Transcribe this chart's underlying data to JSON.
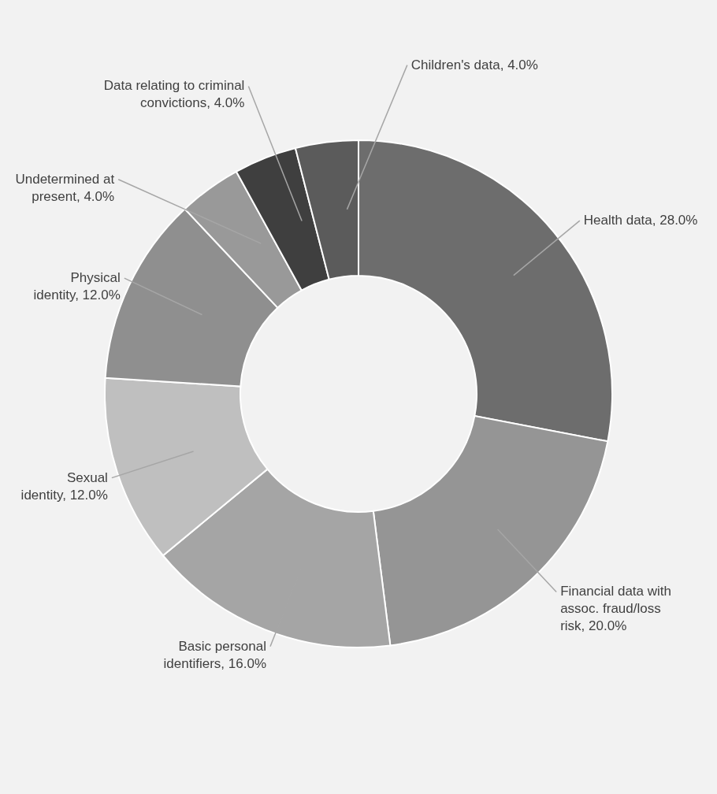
{
  "chart_data": {
    "type": "donut",
    "categories": [
      "Health data",
      "Financial data with assoc. fraud/loss risk",
      "Basic personal identifiers",
      "Sexual identity",
      "Physical identity",
      "Undetermined at present",
      "Data relating to criminal convictions",
      "Children's data"
    ],
    "values": [
      28,
      20,
      16,
      12,
      12,
      4,
      4,
      4
    ],
    "value_labels": [
      "28.0%",
      "20.0%",
      "16.0%",
      "12.0%",
      "12.0%",
      "4.0%",
      "4.0%",
      "4.0%"
    ],
    "colors": [
      "#6d6d6d",
      "#959595",
      "#a5a5a5",
      "#bfbfbf",
      "#8f8f8f",
      "#999999",
      "#3f3f3f",
      "#5b5b5b"
    ]
  }
}
